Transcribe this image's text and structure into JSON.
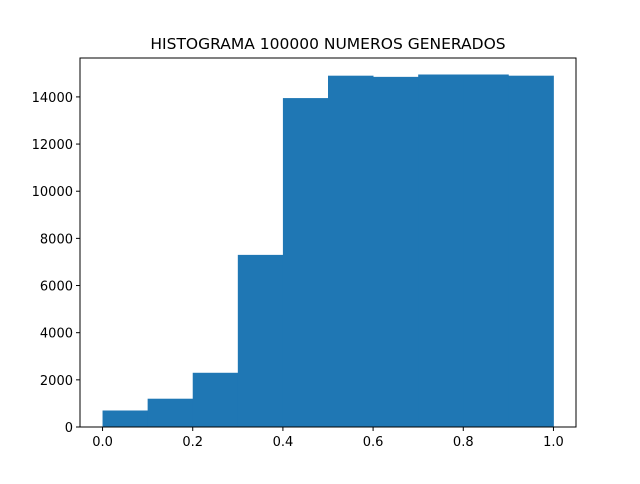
{
  "chart_data": {
    "type": "bar",
    "title": "HISTOGRAMA 100000 NUMEROS GENERADOS",
    "xlabel": "",
    "ylabel": "",
    "bin_edges": [
      0.0,
      0.1,
      0.2,
      0.3,
      0.4,
      0.5,
      0.6,
      0.7,
      0.8,
      0.9,
      1.0
    ],
    "values": [
      700,
      1200,
      2300,
      7300,
      13950,
      14900,
      14850,
      14950,
      14950,
      14900
    ],
    "xlim": [
      -0.05,
      1.05
    ],
    "ylim": [
      0,
      15650
    ],
    "xticks": [
      0.0,
      0.2,
      0.4,
      0.6,
      0.8,
      1.0
    ],
    "xtick_labels": [
      "0.0",
      "0.2",
      "0.4",
      "0.6",
      "0.8",
      "1.0"
    ],
    "yticks": [
      0,
      2000,
      4000,
      6000,
      8000,
      10000,
      12000,
      14000
    ],
    "ytick_labels": [
      "0",
      "2000",
      "4000",
      "6000",
      "8000",
      "10000",
      "12000",
      "14000"
    ],
    "bar_color": "#1f77b4",
    "grid": false,
    "legend": "none"
  }
}
